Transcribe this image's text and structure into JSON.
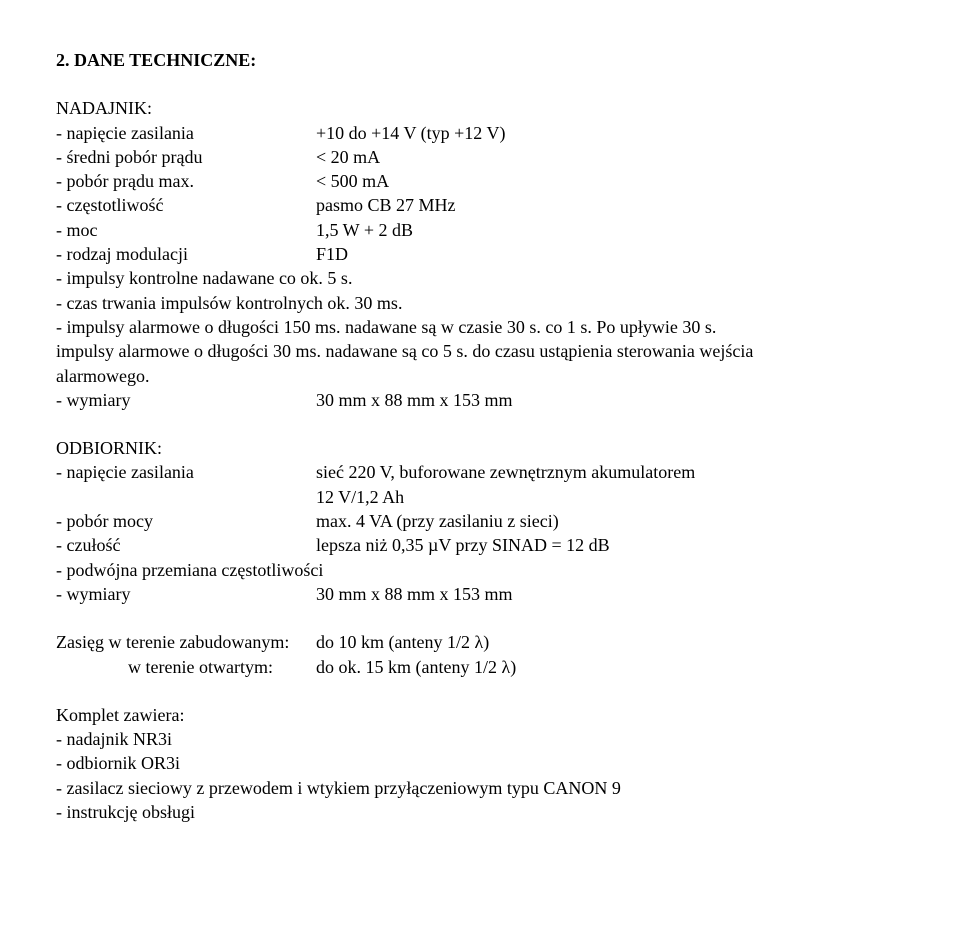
{
  "title": "2. DANE TECHNICZNE:",
  "transmitter": {
    "heading": "NADAJNIK:",
    "rows": [
      {
        "label": "- napięcie zasilania",
        "value": "+10 do +14 V (typ +12 V)"
      },
      {
        "label": "- średni pobór prądu",
        "value": "< 20 mA"
      },
      {
        "label": "- pobór prądu max.",
        "value": "< 500 mA"
      },
      {
        "label": "- częstotliwość",
        "value": "pasmo CB 27 MHz"
      },
      {
        "label": "- moc",
        "value": "1,5 W + 2 dB"
      },
      {
        "label": "- rodzaj modulacji",
        "value": "F1D"
      }
    ],
    "line7": "- impulsy kontrolne nadawane co ok. 5 s.",
    "line8": "- czas trwania impulsów kontrolnych ok. 30 ms.",
    "line9": "- impulsy alarmowe o długości 150 ms. nadawane są w czasie 30 s. co 1 s. Po upływie 30 s.",
    "line10": "impulsy alarmowe o długości 30 ms. nadawane są co 5 s. do czasu ustąpienia sterowania wejścia",
    "line11": "alarmowego.",
    "dim_label": "- wymiary",
    "dim_value": "30 mm x 88 mm x 153 mm"
  },
  "receiver": {
    "heading": "ODBIORNIK:",
    "rows": [
      {
        "label": "- napięcie zasilania",
        "value": "sieć 220 V, buforowane zewnętrznym akumulatorem"
      }
    ],
    "row1_line2": "12 V/1,2 Ah",
    "rows2": [
      {
        "label": "- pobór mocy",
        "value": "max. 4 VA (przy zasilaniu z sieci)"
      },
      {
        "label": "- czułość",
        "value": "lepsza niż 0,35 µV przy SINAD = 12 dB"
      }
    ],
    "line_plain": "- podwójna przemiana częstotliwości",
    "dim_label": "- wymiary",
    "dim_value": "30 mm x 88 mm x 153 mm"
  },
  "range": {
    "row1_label": "Zasięg w terenie zabudowanym:",
    "row1_value": "do 10 km (anteny 1/2 λ)",
    "row2_label": "w terenie otwartym:",
    "row2_value": "do ok. 15 km (anteny 1/2 λ)"
  },
  "kit": {
    "heading": "Komplet zawiera:",
    "items": [
      "- nadajnik NR3i",
      "- odbiornik OR3i",
      "- zasilacz sieciowy z przewodem i wtykiem przyłączeniowym typu CANON 9",
      "- instrukcję obsługi"
    ]
  }
}
